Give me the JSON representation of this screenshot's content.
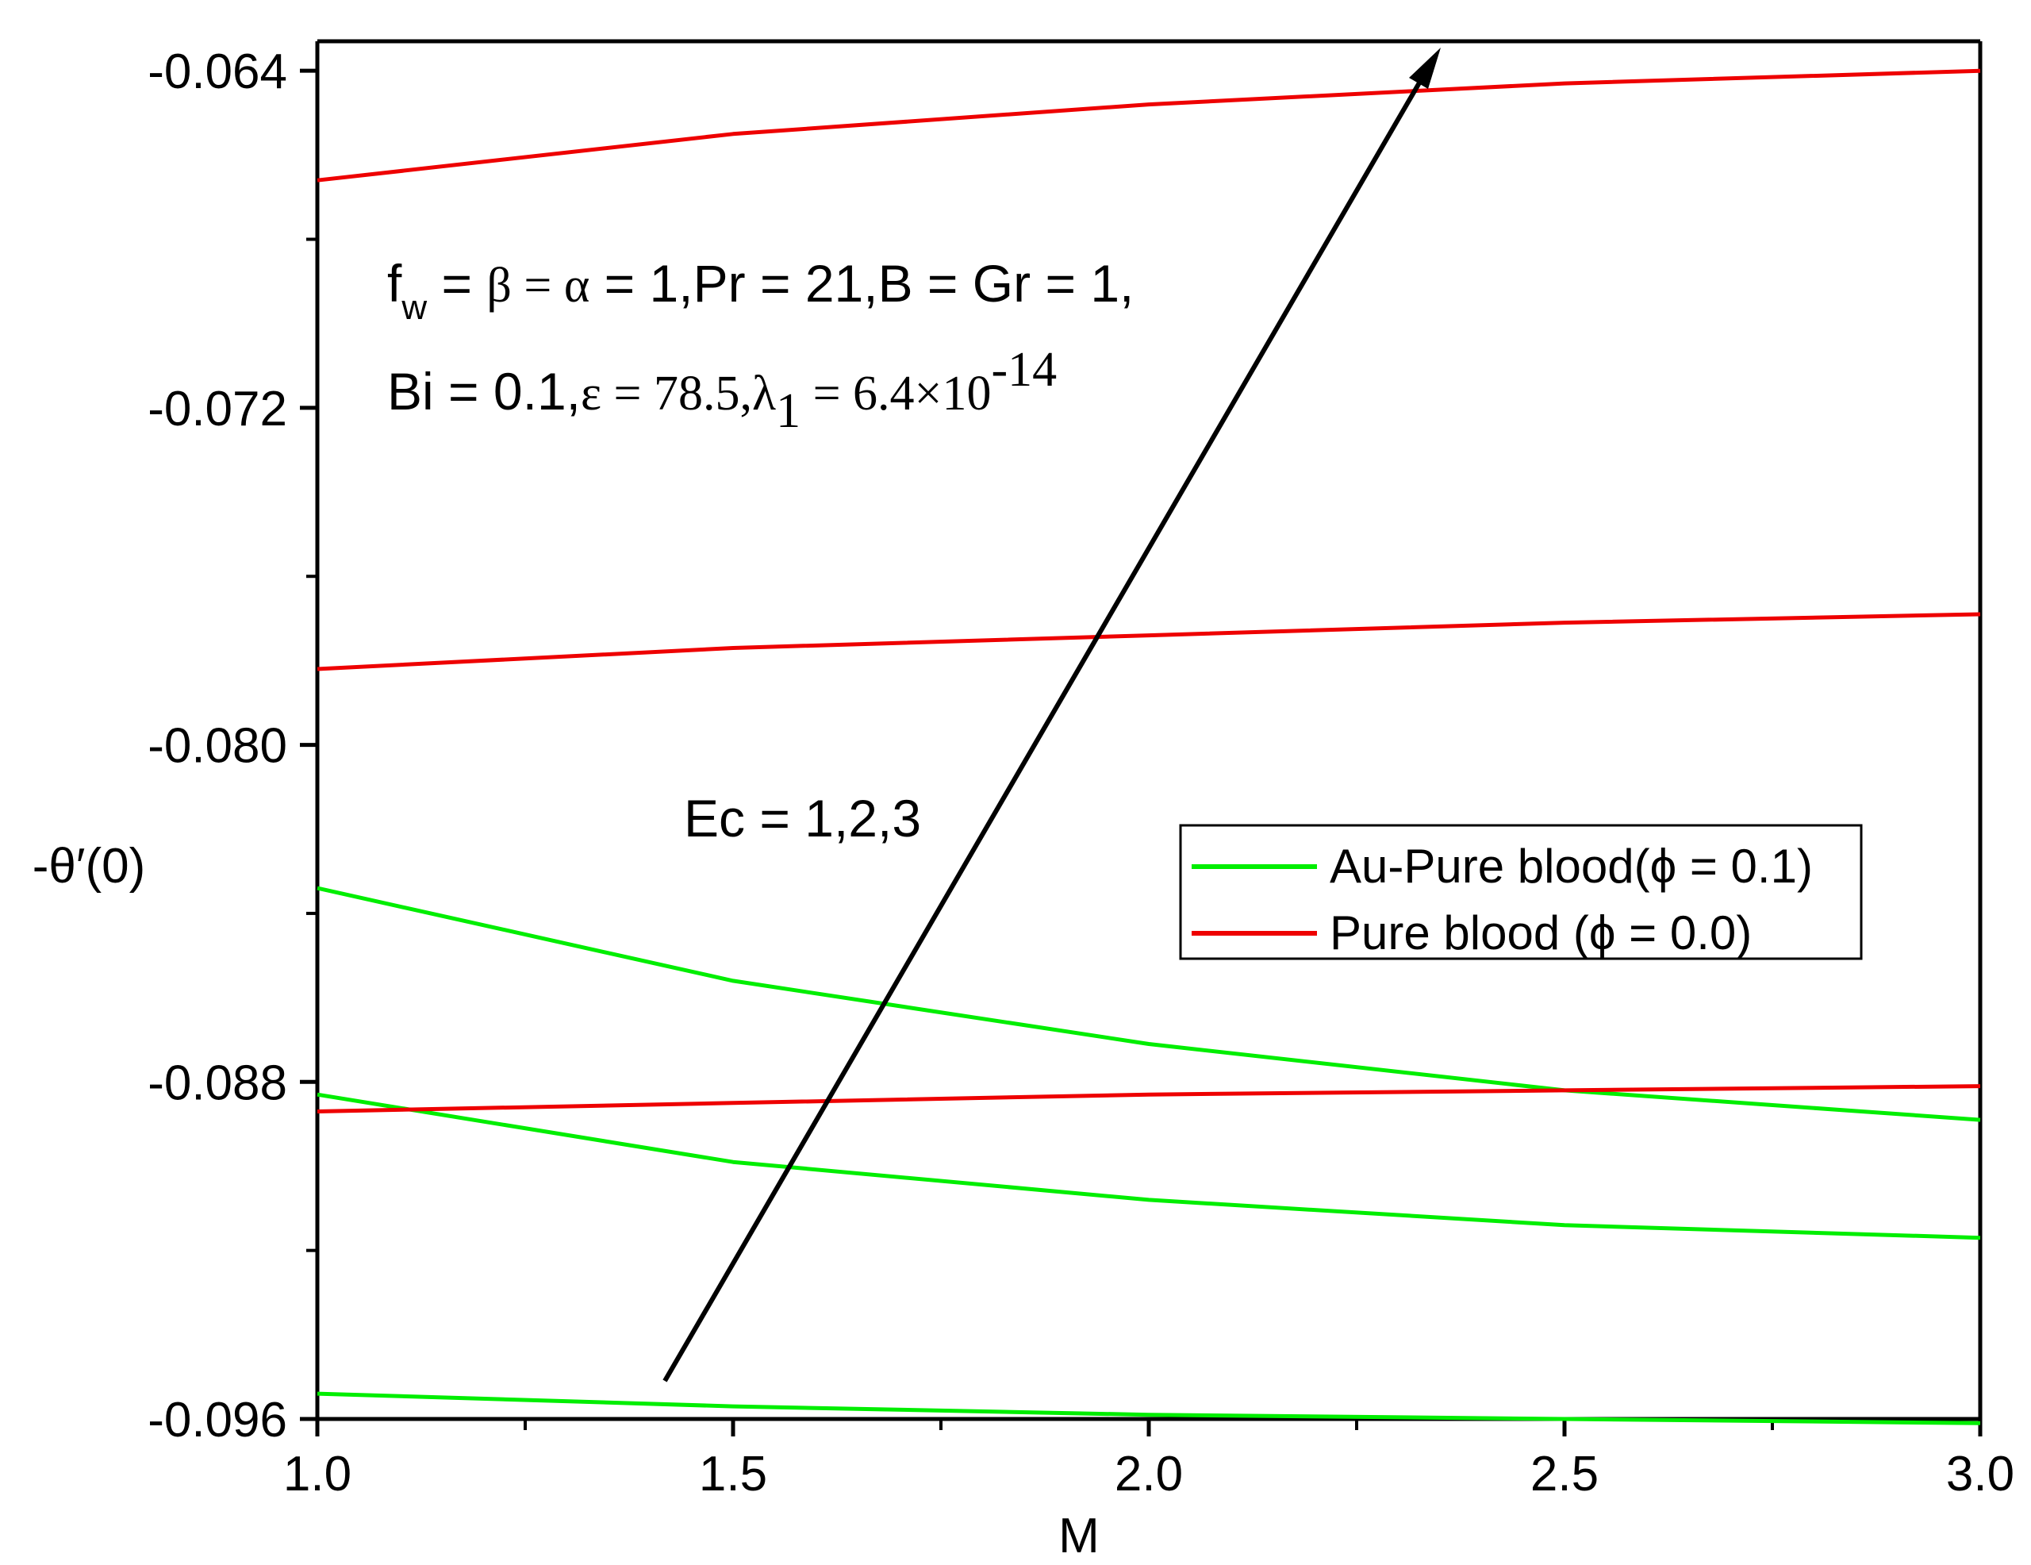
{
  "chart_data": {
    "type": "line",
    "title": "",
    "xlabel": "M",
    "ylabel": "-θ′(0)",
    "xlim": [
      1.0,
      3.0
    ],
    "ylim": [
      -0.096,
      -0.0633
    ],
    "x_ticks": [
      1.0,
      1.5,
      2.0,
      2.5,
      3.0
    ],
    "x_tick_labels": [
      "1.0",
      "1.5",
      "2.0",
      "2.5",
      "3.0"
    ],
    "y_ticks": [
      -0.064,
      -0.072,
      -0.08,
      -0.088,
      -0.096
    ],
    "y_tick_labels": [
      "-0.064",
      "-0.072",
      "-0.080",
      "-0.088",
      "-0.096"
    ],
    "grid": false,
    "legend_position": "right",
    "x": [
      1.0,
      1.5,
      2.0,
      2.5,
      3.0
    ],
    "series": [
      {
        "name": "Au-Pure blood(ϕ = 0.1)",
        "color": "#00ee00",
        "values": [
          -0.0954,
          -0.0957,
          -0.0959,
          -0.096,
          -0.0961
        ]
      },
      {
        "name": "Au-Pure blood(ϕ = 0.1)",
        "color": "#00ee00",
        "values": [
          -0.0883,
          -0.0899,
          -0.0908,
          -0.0914,
          -0.0917
        ]
      },
      {
        "name": "Au-Pure blood(ϕ = 0.1)",
        "color": "#00ee00",
        "values": [
          -0.0834,
          -0.0856,
          -0.0871,
          -0.0882,
          -0.0889
        ]
      },
      {
        "name": "Pure blood (ϕ = 0.0)",
        "color": "#ee0000",
        "values": [
          -0.0887,
          -0.0885,
          -0.0883,
          -0.0882,
          -0.0881
        ]
      },
      {
        "name": "Pure blood (ϕ = 0.0)",
        "color": "#ee0000",
        "values": [
          -0.0782,
          -0.0777,
          -0.0774,
          -0.0771,
          -0.0769
        ]
      },
      {
        "name": "Pure blood (ϕ = 0.0)",
        "color": "#ee0000",
        "values": [
          -0.0666,
          -0.0655,
          -0.0648,
          -0.0643,
          -0.064
        ]
      }
    ],
    "legend": [
      {
        "label": "Au-Pure blood(ϕ = 0.1)",
        "color": "#00ee00"
      },
      {
        "label": "Pure blood (ϕ = 0.0)",
        "color": "#ee0000"
      }
    ],
    "annotations": {
      "params_line1_parts": [
        "f",
        "w",
        " = ",
        "β = α",
        " = 1,Pr = 21,B = Gr = 1,"
      ],
      "params_line2_parts": [
        "Bi = 0.1,",
        "ε = 78.5,λ",
        "1",
        " = 6.4×10",
        "-14"
      ],
      "arrow_label": "Ec = 1,2,3"
    }
  }
}
